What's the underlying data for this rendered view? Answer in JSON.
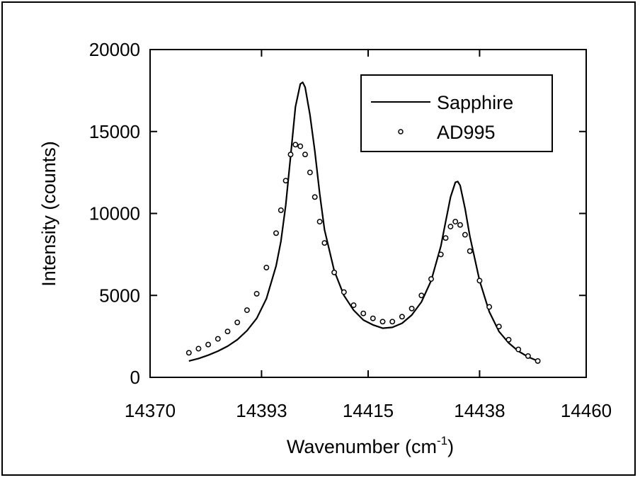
{
  "chart_data": {
    "type": "line",
    "xlabel": "Wavenumber (cm",
    "xlabel_superscript": "-1",
    "xlabel_close": ")",
    "ylabel": "Intensity  (counts)",
    "xlim": [
      14370,
      14460
    ],
    "ylim": [
      0,
      20000
    ],
    "x_ticks": [
      14370,
      14393,
      14415,
      14438,
      14460
    ],
    "x_tick_labels": [
      "14370",
      "14393",
      "14415",
      "14438",
      "14460"
    ],
    "y_ticks": [
      0,
      5000,
      10000,
      15000,
      20000
    ],
    "y_tick_labels": [
      "0",
      "5000",
      "10000",
      "15000",
      "20000"
    ],
    "grid": false,
    "legend_position": "top-right",
    "series": [
      {
        "name": "Sapphire",
        "style": "line",
        "x": [
          14378,
          14380,
          14382,
          14384,
          14386,
          14388,
          14390,
          14392,
          14394,
          14396,
          14397,
          14398,
          14399,
          14400,
          14401,
          14401.5,
          14402,
          14403,
          14404,
          14405,
          14406,
          14408,
          14410,
          14412,
          14414,
          14416,
          14418,
          14420,
          14422,
          14424,
          14426,
          14428,
          14430,
          14431,
          14432,
          14433,
          14433.5,
          14434,
          14435,
          14436,
          14438,
          14440,
          14442,
          14444,
          14446,
          14448,
          14450
        ],
        "y": [
          1000,
          1150,
          1350,
          1600,
          1900,
          2300,
          2850,
          3600,
          4800,
          6800,
          8300,
          10500,
          13500,
          16500,
          17900,
          18000,
          17700,
          16000,
          13800,
          11200,
          9000,
          6500,
          5000,
          4100,
          3500,
          3200,
          3000,
          3050,
          3300,
          3800,
          4600,
          5900,
          8000,
          9500,
          11000,
          11900,
          11950,
          11700,
          10300,
          8600,
          5900,
          4000,
          2800,
          2100,
          1600,
          1250,
          1000
        ]
      },
      {
        "name": "AD995",
        "style": "markers",
        "x": [
          14378,
          14380,
          14382,
          14384,
          14386,
          14388,
          14390,
          14392,
          14394,
          14396,
          14397,
          14398,
          14399,
          14400,
          14401,
          14402,
          14403,
          14404,
          14405,
          14406,
          14408,
          14410,
          14412,
          14414,
          14416,
          14418,
          14420,
          14422,
          14424,
          14426,
          14428,
          14430,
          14431,
          14432,
          14433,
          14434,
          14435,
          14436,
          14438,
          14440,
          14442,
          14444,
          14446,
          14448,
          14450
        ],
        "y": [
          1500,
          1750,
          2000,
          2350,
          2800,
          3350,
          4100,
          5100,
          6700,
          8800,
          10200,
          12000,
          13600,
          14200,
          14100,
          13600,
          12500,
          11000,
          9500,
          8200,
          6400,
          5200,
          4400,
          3900,
          3600,
          3400,
          3400,
          3700,
          4200,
          5000,
          6000,
          7500,
          8500,
          9200,
          9500,
          9300,
          8700,
          7700,
          5900,
          4300,
          3100,
          2300,
          1700,
          1300,
          1000
        ]
      }
    ]
  }
}
